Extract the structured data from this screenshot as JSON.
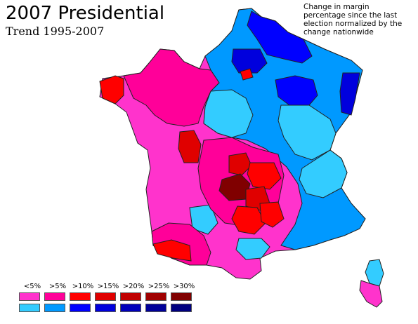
{
  "title": "2007 Presidential",
  "subtitle": "Trend 1995-2007",
  "note_lines": [
    "Change in margin",
    "percentage since the last",
    "election normalized by the",
    "change nationwide"
  ],
  "legend": {
    "labels": [
      "<5%",
      ">5%",
      ">10%",
      ">15%",
      ">20%",
      ">25%",
      ">30%"
    ],
    "right_colors": [
      "#ff33cc",
      "#ff0099",
      "#ff0000",
      "#e00000",
      "#c00000",
      "#a00000",
      "#800000"
    ],
    "left_colors": [
      "#33ccff",
      "#0099ff",
      "#0000ff",
      "#0000dd",
      "#0000bb",
      "#000099",
      "#000080"
    ]
  },
  "map": {
    "regions_right": [
      "Bretagne",
      "Basse-Normandie",
      "Pays de la Loire",
      "Poitou-Charentes",
      "Limousin",
      "Aquitaine",
      "Midi-Pyrenees",
      "Auvergne",
      "Corse-du-Sud"
    ],
    "regions_left": [
      "Nord-Pas-de-Calais",
      "Picardie",
      "Champagne-Ardenne",
      "Lorraine",
      "Alsace",
      "Ile-de-France",
      "Centre",
      "Bourgogne",
      "Franche-Comte",
      "Rhone-Alpes",
      "PACA",
      "Languedoc-Roussillon",
      "Haute-Corse"
    ]
  }
}
